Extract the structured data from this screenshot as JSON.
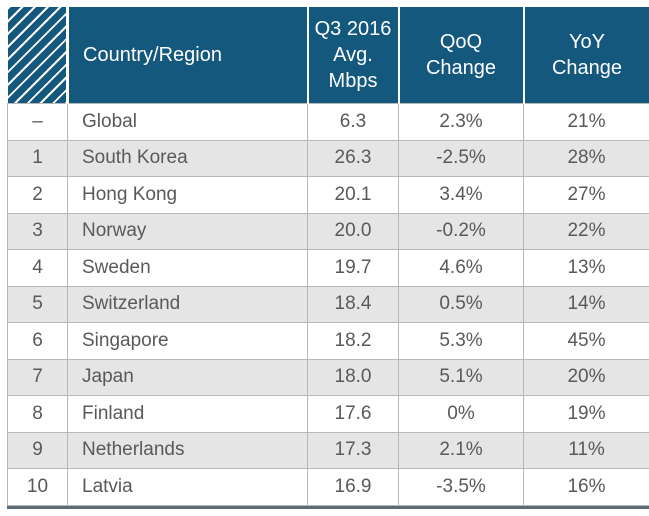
{
  "chart_data": {
    "type": "table",
    "title": "",
    "columns": [
      "",
      "Country/Region",
      "Q3 2016 Avg. Mbps",
      "QoQ Change",
      "YoY Change"
    ],
    "rows": [
      [
        "–",
        "Global",
        "6.3",
        "2.3%",
        "21%"
      ],
      [
        "1",
        "South Korea",
        "26.3",
        "-2.5%",
        "28%"
      ],
      [
        "2",
        "Hong Kong",
        "20.1",
        "3.4%",
        "27%"
      ],
      [
        "3",
        "Norway",
        "20.0",
        "-0.2%",
        "22%"
      ],
      [
        "4",
        "Sweden",
        "19.7",
        "4.6%",
        "13%"
      ],
      [
        "5",
        "Switzerland",
        "18.4",
        "0.5%",
        "14%"
      ],
      [
        "6",
        "Singapore",
        "18.2",
        "5.3%",
        "45%"
      ],
      [
        "7",
        "Japan",
        "18.0",
        "5.1%",
        "20%"
      ],
      [
        "8",
        "Finland",
        "17.6",
        "0%",
        "19%"
      ],
      [
        "9",
        "Netherlands",
        "17.3",
        "2.1%",
        "11%"
      ],
      [
        "10",
        "Latvia",
        "16.9",
        "-3.5%",
        "16%"
      ]
    ]
  },
  "header": {
    "country_label": "Country/Region",
    "mbps_label": "Q3 2016\nAvg. Mbps",
    "qoq_label": "QoQ\nChange",
    "yoy_label": "YoY\nChange"
  },
  "colors": {
    "header_bg": "#14587e",
    "header_text": "#ffffff",
    "row_alt_bg": "#e5e5e6",
    "body_text": "#58595b",
    "grid_line": "#b5b8ba",
    "bottom_rule": "#5f6b74"
  }
}
